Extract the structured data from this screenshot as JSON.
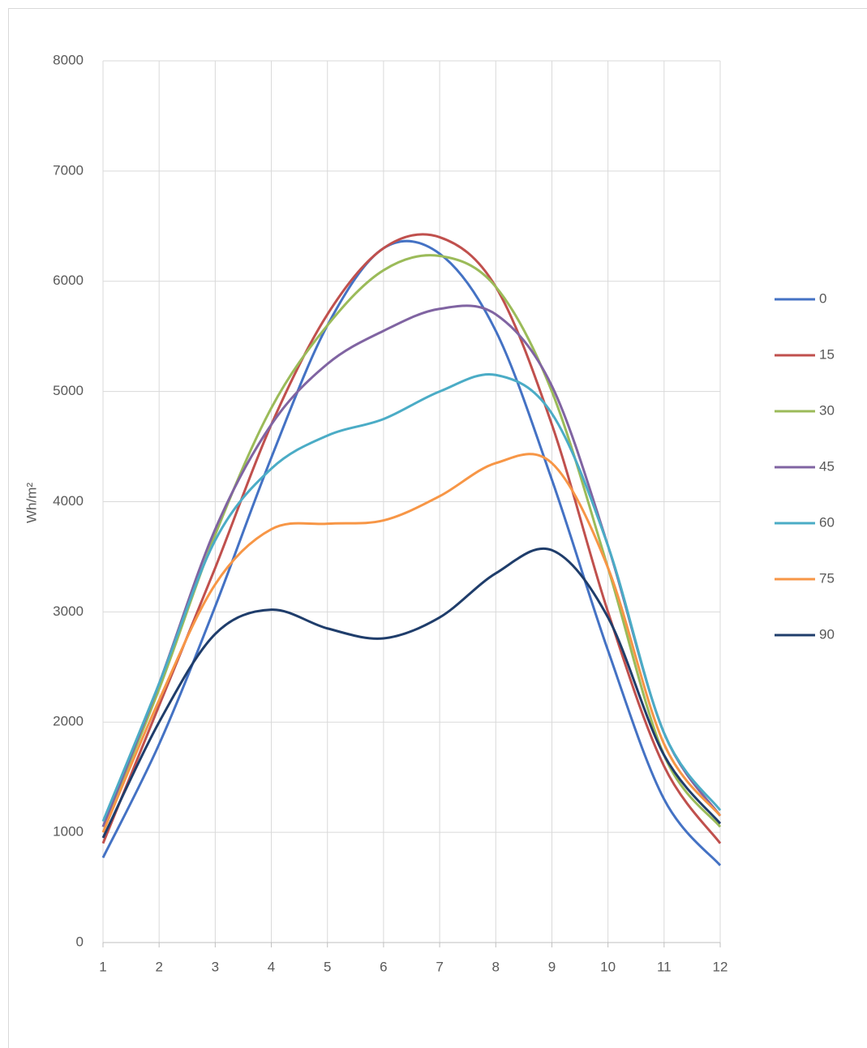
{
  "chart_data": {
    "type": "line",
    "y_label": "Wh/m²",
    "x": [
      1,
      2,
      3,
      4,
      5,
      6,
      7,
      8,
      9,
      10,
      11,
      12
    ],
    "xlim": [
      1,
      12
    ],
    "xticks": [
      1,
      2,
      3,
      4,
      5,
      6,
      7,
      8,
      9,
      10,
      11,
      12
    ],
    "ylim": [
      0,
      8000
    ],
    "yticks": [
      0,
      1000,
      2000,
      3000,
      4000,
      5000,
      6000,
      7000,
      8000
    ],
    "grid": true,
    "smooth": true,
    "legend": "right",
    "series": [
      {
        "name": "0",
        "color": "#4472c4",
        "values": [
          770,
          1800,
          3050,
          4400,
          5600,
          6300,
          6250,
          5550,
          4200,
          2650,
          1300,
          700
        ]
      },
      {
        "name": "15",
        "color": "#c0504d",
        "values": [
          900,
          2150,
          3400,
          4700,
          5700,
          6300,
          6400,
          5950,
          4700,
          3000,
          1600,
          900
        ]
      },
      {
        "name": "30",
        "color": "#9bbb59",
        "values": [
          1050,
          2300,
          3700,
          4850,
          5600,
          6100,
          6230,
          5950,
          5000,
          3400,
          1700,
          1050
        ]
      },
      {
        "name": "45",
        "color": "#8064a2",
        "values": [
          1050,
          2350,
          3750,
          4700,
          5250,
          5550,
          5750,
          5700,
          5050,
          3600,
          1900,
          1150
        ]
      },
      {
        "name": "60",
        "color": "#4bacc6",
        "values": [
          1100,
          2350,
          3650,
          4300,
          4600,
          4750,
          5000,
          5150,
          4800,
          3600,
          1900,
          1200
        ]
      },
      {
        "name": "75",
        "color": "#f79646",
        "values": [
          1000,
          2200,
          3250,
          3750,
          3800,
          3830,
          4050,
          4350,
          4350,
          3400,
          1800,
          1150
        ]
      },
      {
        "name": "90",
        "color": "#1f3d6b",
        "values": [
          950,
          2000,
          2800,
          3020,
          2850,
          2760,
          2950,
          3350,
          3560,
          2950,
          1700,
          1080
        ]
      }
    ]
  }
}
